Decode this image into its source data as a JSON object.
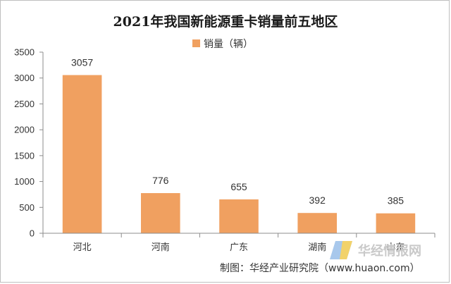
{
  "chart_data": {
    "type": "bar",
    "title": "2021年我国新能源重卡销量前五地区",
    "legend": {
      "label": "销量（辆）",
      "placement": "top"
    },
    "categories": [
      "河北",
      "河南",
      "广东",
      "湖南",
      "山东"
    ],
    "series": [
      {
        "name": "销量（辆）",
        "values": [
          3057,
          776,
          655,
          392,
          385
        ]
      }
    ],
    "ylim": [
      0,
      3500
    ],
    "yticks": [
      0,
      500,
      1000,
      1500,
      2000,
      2500,
      3000,
      3500
    ],
    "grid": false,
    "bar_color": "#f0a060"
  },
  "source_note": "制图：华经产业研究院（www.huaon.com）",
  "watermark": {
    "text": "华经情报网",
    "icon": "huajing-logo-icon"
  }
}
